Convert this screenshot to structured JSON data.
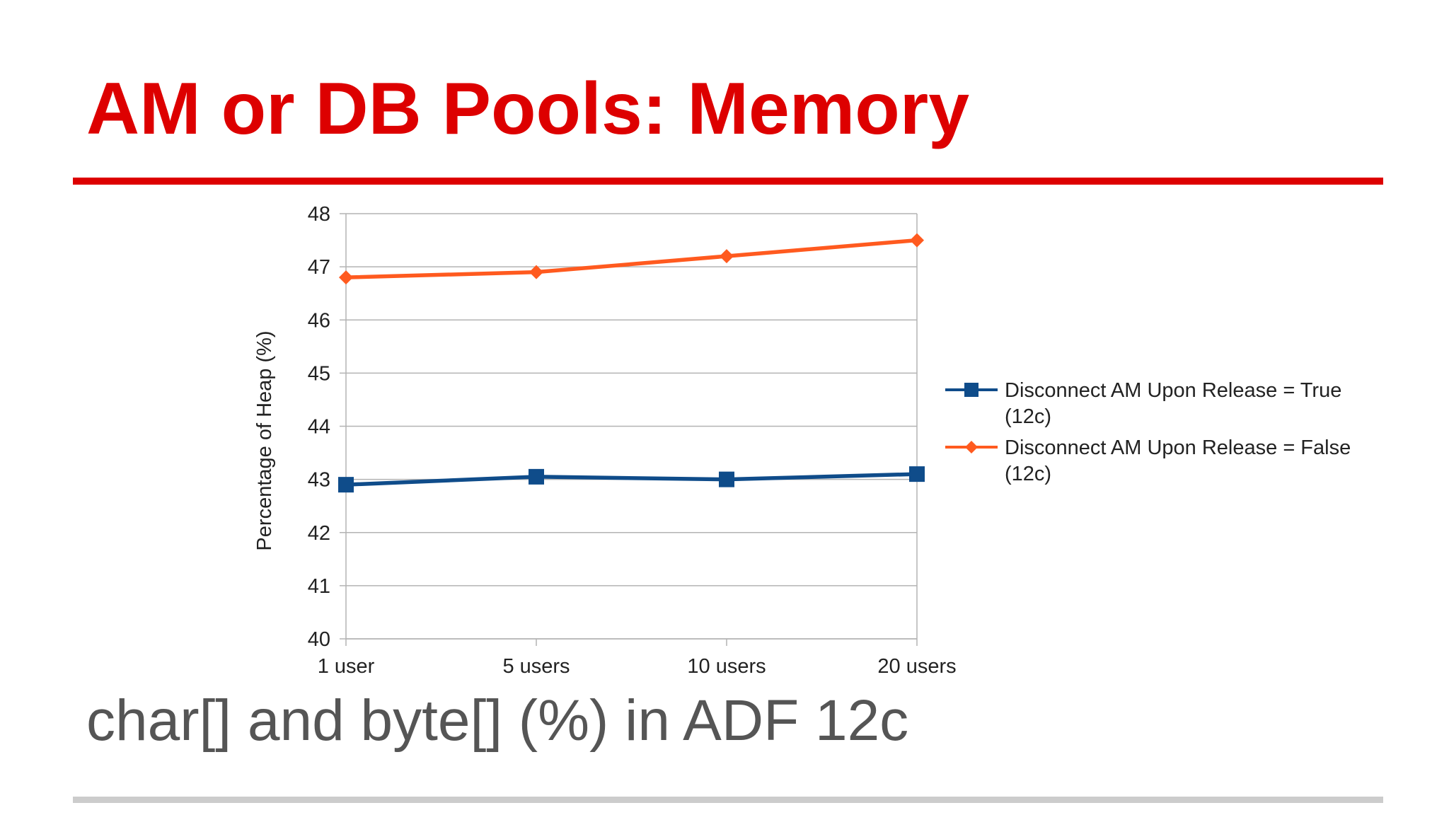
{
  "slide": {
    "title": "AM or DB Pools: Memory",
    "subtitle": "char[] and byte[] (%) in ADF 12c",
    "colors": {
      "title": "#dd0000",
      "title_rule": "#dd0000",
      "subtitle": "#555555",
      "footer_rule": "#cccccc"
    }
  },
  "chart_data": {
    "type": "line",
    "title": "",
    "xlabel": "",
    "ylabel": "Percentage of Heap (%)",
    "categories": [
      "1 user",
      "5 users",
      "10 users",
      "20 users"
    ],
    "ylim": [
      40,
      48
    ],
    "yticks": [
      "40",
      "41",
      "42",
      "43",
      "44",
      "45",
      "46",
      "47",
      "48"
    ],
    "grid": true,
    "legend_position": "right",
    "series": [
      {
        "name": "Disconnect AM Upon Release = True (12c)",
        "legend_lines": [
          "Disconnect AM Upon Release = True",
          "(12c)"
        ],
        "values": [
          42.9,
          43.05,
          43.0,
          43.1
        ],
        "color": "#0f4c8a",
        "marker": "square"
      },
      {
        "name": "Disconnect AM Upon Release = False (12c)",
        "legend_lines": [
          "Disconnect AM Upon Release = False",
          "(12c)"
        ],
        "values": [
          46.8,
          46.9,
          47.2,
          47.5
        ],
        "color": "#ff5a1f",
        "marker": "diamond"
      }
    ]
  }
}
